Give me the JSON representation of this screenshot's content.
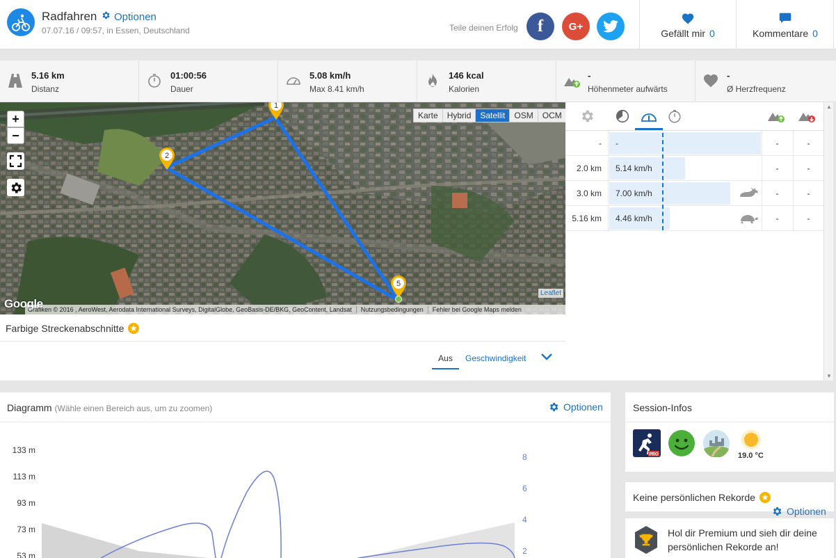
{
  "header": {
    "title": "Radfahren",
    "options_label": "Optionen",
    "subtitle": "07.07.16 / 09:57, in Essen, Deutschland",
    "share_label": "Teile deinen Erfolg",
    "social": [
      {
        "name": "facebook",
        "glyph": "f",
        "color": "#3b5998"
      },
      {
        "name": "google-plus",
        "glyph": "G+",
        "color": "#dd4b39"
      },
      {
        "name": "twitter",
        "glyph": "bird",
        "color": "#1da1f2"
      }
    ],
    "like_label": "Gefällt mir",
    "like_count": "0",
    "comment_label": "Kommentare",
    "comment_count": "0"
  },
  "stats": [
    {
      "icon": "road-icon",
      "value": "5.16 km",
      "label": "Distanz"
    },
    {
      "icon": "stopwatch-icon",
      "value": "01:00:56",
      "label": "Dauer"
    },
    {
      "icon": "speedometer-icon",
      "value": "5.08 km/h",
      "label": "Max 8.41 km/h"
    },
    {
      "icon": "flame-icon",
      "value": "146 kcal",
      "label": "Kalorien"
    },
    {
      "icon": "elevation-up-icon",
      "value": "-",
      "label": "Höhenmeter aufwärts"
    },
    {
      "icon": "heart-icon",
      "value": "-",
      "label": "Ø Herzfrequenz"
    }
  ],
  "map": {
    "layers": [
      "Karte",
      "Hybrid",
      "Satellit",
      "OSM",
      "OCM"
    ],
    "active_layer": "Satellit",
    "zoom_in": "+",
    "zoom_out": "−",
    "markers": [
      "1",
      "2",
      "5"
    ],
    "leaflet": "Leaflet",
    "google": "Google",
    "attribution": "Grafiken © 2016 , AeroWest, Aerodata International Surveys, DigitalGlobe, GeoBasis-DE/BKG, GeoContent, Landsat",
    "terms": "Nutzungsbedingungen",
    "report": "Fehler bei Google Maps melden"
  },
  "colored_sections": {
    "title": "Farbige Streckenabschnitte",
    "tabs": [
      "Aus",
      "Geschwindigkeit"
    ],
    "active_tab": "Aus"
  },
  "splits": {
    "rows": [
      {
        "distance": "-",
        "speed": "-",
        "bar_fraction": 1.0,
        "animal": "",
        "up": "-",
        "down": "-"
      },
      {
        "distance": "2.0 km",
        "speed": "5.14 km/h",
        "bar_fraction": 0.5,
        "animal": "",
        "up": "-",
        "down": "-"
      },
      {
        "distance": "3.0 km",
        "speed": "7.00 km/h",
        "bar_fraction": 0.8,
        "animal": "rabbit-icon",
        "up": "-",
        "down": "-"
      },
      {
        "distance": "5.16 km",
        "speed": "4.46 km/h",
        "bar_fraction": 0.4,
        "animal": "turtle-icon",
        "up": "-",
        "down": "-"
      }
    ]
  },
  "diagram": {
    "title": "Diagramm",
    "subtitle": "(Wähle einen Bereich aus, um zu zoomen)",
    "options_label": "Optionen"
  },
  "chart_data": {
    "type": "line",
    "y_left_ticks": [
      "133 m",
      "113 m",
      "93 m",
      "73 m",
      "53 m"
    ],
    "y_right_ticks": [
      "8",
      "6",
      "4",
      "2"
    ],
    "series": [
      {
        "color": "#d5d5d5"
      },
      {
        "color": "#6b7fd6"
      }
    ]
  },
  "session": {
    "title": "Session-Infos",
    "temperature": "19.0 °C"
  },
  "records": {
    "title": "Keine persönlichen Rekorde",
    "options_label": "Optionen",
    "premium_text": "Hol dir Premium und sieh dir deine persönlichen Rekorde an!"
  },
  "colors": {
    "accent": "#1a73c8",
    "route": "#1e72e8",
    "marker": "#f4b400"
  }
}
